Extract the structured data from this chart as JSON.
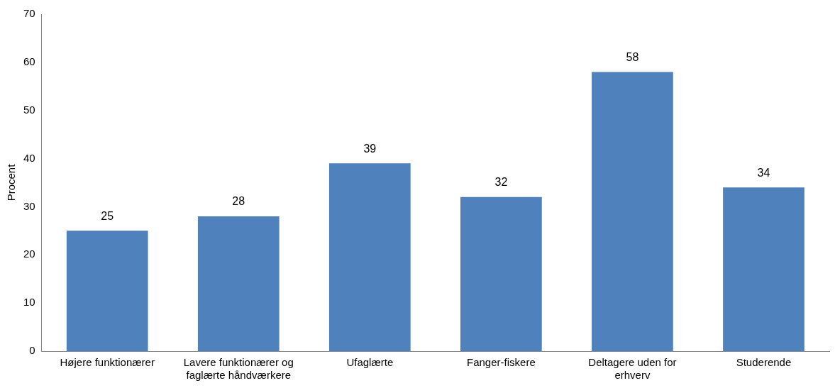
{
  "chart_data": {
    "type": "bar",
    "ylabel": "Procent",
    "categories": [
      "Højere funktionærer",
      "Lavere funktionærer og faglærte håndværkere",
      "Ufaglærte",
      "Fanger-fiskere",
      "Deltagere uden for erhverv",
      "Studerende"
    ],
    "values": [
      25,
      28,
      39,
      32,
      58,
      34
    ],
    "color": "#4f81bd",
    "ylim": [
      0,
      70
    ],
    "yticks": [
      0,
      10,
      20,
      30,
      40,
      50,
      60,
      70
    ],
    "grid": false,
    "legend": false,
    "data_labels": true
  }
}
